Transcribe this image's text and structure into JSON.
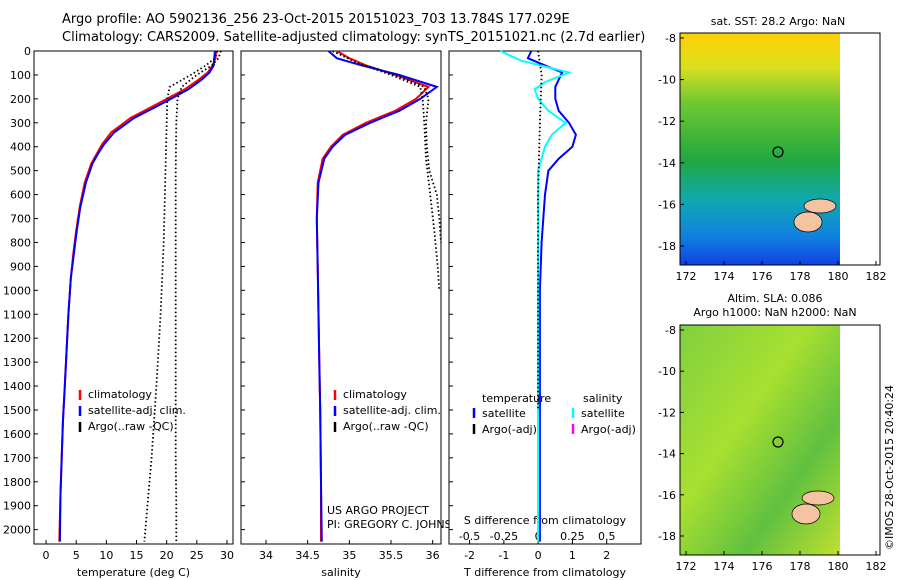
{
  "title": {
    "line1": "Argo profile: AO 5902136_256 23-Oct-2015 20151023_703 13.784S 177.029E",
    "line2": "Climatology: CARS2009. Satellite-adjusted climatology: synTS_20151021.nc (2.7d earlier)"
  },
  "chart_data": [
    {
      "type": "line",
      "panel": "temperature",
      "xlabel": "temperature (deg C)",
      "xlim": [
        -2,
        31
      ],
      "xticks": [
        0,
        5,
        10,
        15,
        20,
        25,
        30
      ],
      "ylim": [
        0,
        2060
      ],
      "yticks": [
        0,
        100,
        200,
        300,
        400,
        500,
        600,
        700,
        800,
        900,
        1000,
        1100,
        1200,
        1300,
        1400,
        1500,
        1600,
        1700,
        1800,
        1900,
        2000
      ],
      "y_reversed": true,
      "legend": {
        "position": "lower-middle",
        "entries": [
          "climatology",
          "satellite-adj. clim.",
          "Argo(..raw -QC)"
        ]
      },
      "series": [
        {
          "name": "climatology",
          "color": "#ff0000",
          "x": [
            28.2,
            28.1,
            27.6,
            26.8,
            25.3,
            23.0,
            18.5,
            14.0,
            10.8,
            9.3,
            8.4,
            7.5,
            6.4,
            5.6,
            5.0,
            4.5,
            4.1,
            3.7,
            3.4,
            3.1,
            2.8,
            2.6,
            2.4,
            2.2
          ],
          "y": [
            0,
            30,
            60,
            90,
            120,
            160,
            220,
            280,
            340,
            390,
            430,
            470,
            550,
            650,
            750,
            850,
            950,
            1100,
            1250,
            1400,
            1550,
            1700,
            1850,
            2050
          ]
        },
        {
          "name": "satellite-adj. clim.",
          "color": "#0000ff",
          "x": [
            28.0,
            27.9,
            27.8,
            27.1,
            25.8,
            23.6,
            19.2,
            14.6,
            11.3,
            9.6,
            8.6,
            7.7,
            6.6,
            5.7,
            5.1,
            4.6,
            4.1,
            3.7,
            3.4,
            3.1,
            2.8,
            2.6,
            2.4,
            2.3
          ],
          "y": [
            0,
            30,
            60,
            90,
            120,
            160,
            220,
            280,
            340,
            390,
            430,
            470,
            550,
            650,
            750,
            850,
            950,
            1100,
            1250,
            1400,
            1550,
            1700,
            1850,
            2050
          ]
        },
        {
          "name": "Argo(..raw -QC)",
          "color": "#000000",
          "dotted": true,
          "x": [
            29.0,
            28.6,
            27.5,
            25.0,
            22.5,
            21.8,
            21.6,
            21.5,
            21.5,
            21.5,
            21.5,
            21.5,
            21.6,
            21.6
          ],
          "y": [
            0,
            30,
            60,
            100,
            150,
            200,
            300,
            500,
            800,
            1100,
            1400,
            1700,
            1900,
            2050
          ]
        },
        {
          "name": "Argo(..raw -QC)",
          "color": "#000000",
          "dotted": true,
          "x": [
            28.4,
            28.0,
            26.5,
            24.0,
            20.5,
            20.1,
            20.0,
            19.8,
            19.5,
            19.0,
            18.3,
            17.5,
            16.8,
            16.3
          ],
          "y": [
            0,
            30,
            60,
            100,
            150,
            200,
            300,
            500,
            800,
            1100,
            1400,
            1700,
            1900,
            2050
          ]
        }
      ]
    },
    {
      "type": "line",
      "panel": "salinity",
      "xlabel": "salinity",
      "xlim": [
        33.7,
        36.1
      ],
      "xticks": [
        34,
        34.5,
        35,
        35.5,
        36
      ],
      "ylim": [
        0,
        2060
      ],
      "y_reversed": true,
      "legend": {
        "position": "lower-right",
        "entries": [
          "climatology",
          "satellite-adj. clim.",
          "Argo(..raw -QC)"
        ]
      },
      "annotation": [
        "US ARGO PROJECT",
        "PI: GREGORY C. JOHNSON"
      ],
      "series": [
        {
          "name": "climatology",
          "color": "#ff0000",
          "x": [
            34.85,
            35.0,
            35.2,
            35.55,
            35.95,
            35.8,
            35.55,
            35.2,
            34.92,
            34.78,
            34.68,
            34.62,
            34.61,
            34.62,
            34.63,
            34.64,
            34.65,
            34.66,
            34.66
          ],
          "y": [
            0,
            30,
            60,
            100,
            150,
            200,
            250,
            300,
            350,
            400,
            450,
            550,
            700,
            900,
            1100,
            1300,
            1500,
            1800,
            2050
          ]
        },
        {
          "name": "satellite-adj. clim.",
          "color": "#0000ff",
          "x": [
            34.75,
            34.85,
            35.15,
            35.6,
            36.05,
            35.85,
            35.6,
            35.25,
            34.95,
            34.8,
            34.7,
            34.63,
            34.61,
            34.62,
            34.63,
            34.64,
            34.65,
            34.66,
            34.67
          ],
          "y": [
            0,
            30,
            60,
            100,
            150,
            200,
            250,
            300,
            350,
            400,
            450,
            550,
            700,
            900,
            1100,
            1300,
            1500,
            1800,
            2050
          ]
        },
        {
          "name": "Argo(..raw -QC)",
          "color": "#000000",
          "dotted": true,
          "x": [
            34.8,
            35.1,
            35.55,
            35.9,
            35.95,
            35.92,
            35.93,
            35.96,
            36.05,
            36.08,
            36.1
          ],
          "y": [
            0,
            50,
            100,
            150,
            200,
            300,
            400,
            500,
            600,
            700,
            800
          ]
        },
        {
          "name": "Argo(..raw -QC)",
          "color": "#000000",
          "dotted": true,
          "x": [
            34.8,
            35.1,
            35.5,
            35.85,
            35.88,
            35.9,
            35.92,
            35.97,
            36.02,
            36.06,
            36.08
          ],
          "y": [
            0,
            50,
            100,
            150,
            200,
            300,
            450,
            600,
            750,
            900,
            1000
          ]
        }
      ]
    },
    {
      "type": "line",
      "panel": "difference",
      "xlabel": "T difference from climatology",
      "xlabel2": "S difference from climatology",
      "xlim": [
        -2.6,
        3.0
      ],
      "xticks": [
        -2,
        -1,
        0,
        1,
        2
      ],
      "xticks2_labels": [
        "-0.5",
        "-0.25",
        "0",
        "0.25",
        "0.5"
      ],
      "xticks2_values": [
        -2,
        -1,
        0,
        1,
        2
      ],
      "ylim": [
        0,
        2060
      ],
      "y_reversed": true,
      "legend": {
        "position": "middle",
        "temperature_title": "temperature",
        "salinity_title": "salinity",
        "temperature_entries": [
          "satellite",
          "Argo(-adj)"
        ],
        "salinity_entries": [
          "satellite",
          "Argo(-adj)"
        ],
        "colors": {
          "t_satellite": "#0000ff",
          "t_argo": "#000000",
          "s_satellite": "#00ffff",
          "s_argo": "#ff00ff"
        }
      },
      "series": [
        {
          "name": "satellite",
          "color": "#0000ff",
          "x": [
            -0.2,
            -0.3,
            0.2,
            0.7,
            0.6,
            0.5,
            0.5,
            0.6,
            0.9,
            1.1,
            1.0,
            0.6,
            0.3,
            0.2,
            0.15,
            0.1,
            0.05,
            0.05,
            0.05,
            0.05,
            0.05
          ],
          "y": [
            0,
            30,
            60,
            90,
            120,
            150,
            200,
            250,
            300,
            350,
            400,
            450,
            500,
            600,
            700,
            800,
            1000,
            1300,
            1600,
            1900,
            2050
          ]
        },
        {
          "name": "satellite",
          "color": "#00ffff",
          "x": [
            -1.1,
            -0.8,
            -0.5,
            0.9,
            0.2,
            -0.1,
            0.0,
            0.3,
            0.8,
            0.4,
            0.2,
            0.0,
            0.0,
            0.0,
            0.0,
            0.0,
            0.0,
            0.0,
            0.0
          ],
          "y": [
            0,
            20,
            40,
            90,
            130,
            160,
            200,
            250,
            300,
            350,
            400,
            500,
            600,
            700,
            900,
            1200,
            1500,
            1800,
            2050
          ]
        },
        {
          "name": "Argo(-adj)",
          "color": "#000000",
          "dotted": true,
          "x": [
            0.0,
            0.1,
            0.05,
            0.0,
            0.0,
            0.0
          ],
          "y": [
            0,
            100,
            300,
            600,
            1000,
            1500
          ]
        }
      ]
    }
  ],
  "maps": [
    {
      "title": "sat. SST: 28.2 Argo: NaN",
      "yticks": [
        -8,
        -10,
        -12,
        -14,
        -16,
        -18
      ],
      "xticks": [
        172,
        174,
        176,
        178,
        180,
        182
      ]
    },
    {
      "title_line1": "Altim. SLA: 0.086",
      "title_line2": "Argo h1000: NaN h2000: NaN",
      "yticks": [
        -8,
        -10,
        -12,
        -14,
        -16,
        -18
      ],
      "xticks": [
        172,
        174,
        176,
        178,
        180,
        182
      ]
    }
  ],
  "footer_stamp": "©IMOS 28-Oct-2015 20:40:24"
}
